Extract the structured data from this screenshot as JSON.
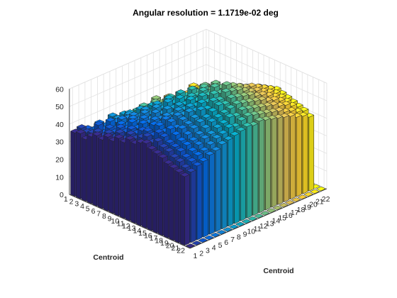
{
  "chart_data": {
    "type": "bar3",
    "title": "Angular resolution =   1.1719e-02 deg",
    "xlabel": "Centroid",
    "ylabel": "Centroid",
    "zlabel": "",
    "x_categories": [
      "1",
      "2",
      "3",
      "4",
      "5",
      "6",
      "7",
      "8",
      "9",
      "10",
      "11",
      "12",
      "13",
      "14",
      "15",
      "16",
      "17",
      "18",
      "19",
      "20",
      "21",
      "22"
    ],
    "y_categories": [
      "1",
      "2",
      "3",
      "4",
      "5",
      "6",
      "7",
      "8",
      "9",
      "10",
      "11",
      "12",
      "13",
      "14",
      "15",
      "16",
      "17",
      "18",
      "19",
      "20",
      "21",
      "22"
    ],
    "zlim": [
      0,
      60
    ],
    "z_ticks": [
      0,
      10,
      20,
      30,
      40,
      50,
      60
    ],
    "grid": true,
    "colormap": "parula",
    "values": [
      [
        36,
        37,
        35,
        33,
        34,
        32,
        36,
        33,
        31,
        30,
        33,
        34,
        32,
        35,
        31,
        33,
        30,
        32,
        29,
        33,
        30,
        0
      ],
      [
        37,
        36,
        34,
        38,
        35,
        33,
        36,
        37,
        34,
        33,
        35,
        32,
        36,
        34,
        33,
        31,
        35,
        33,
        32,
        30,
        31,
        0
      ],
      [
        35,
        37,
        40,
        36,
        38,
        37,
        35,
        39,
        36,
        38,
        34,
        36,
        33,
        37,
        35,
        34,
        32,
        34,
        33,
        31,
        32,
        0
      ],
      [
        38,
        39,
        37,
        42,
        40,
        39,
        41,
        38,
        40,
        37,
        39,
        36,
        38,
        35,
        37,
        33,
        36,
        32,
        35,
        33,
        34,
        0
      ],
      [
        40,
        38,
        41,
        39,
        43,
        42,
        40,
        44,
        41,
        43,
        39,
        41,
        38,
        40,
        36,
        38,
        34,
        37,
        35,
        36,
        33,
        0
      ],
      [
        39,
        41,
        40,
        43,
        41,
        45,
        43,
        42,
        46,
        44,
        42,
        45,
        41,
        43,
        40,
        38,
        39,
        36,
        38,
        37,
        35,
        0
      ],
      [
        42,
        40,
        44,
        42,
        46,
        44,
        48,
        45,
        47,
        46,
        49,
        44,
        47,
        45,
        43,
        41,
        42,
        40,
        39,
        38,
        37,
        0
      ],
      [
        41,
        44,
        43,
        47,
        45,
        49,
        47,
        51,
        48,
        50,
        47,
        49,
        46,
        48,
        45,
        44,
        43,
        41,
        42,
        40,
        38,
        0
      ],
      [
        44,
        42,
        46,
        45,
        49,
        47,
        52,
        50,
        54,
        51,
        53,
        50,
        52,
        49,
        48,
        46,
        45,
        43,
        44,
        41,
        40,
        0
      ],
      [
        43,
        46,
        45,
        49,
        48,
        52,
        50,
        55,
        53,
        57,
        54,
        56,
        52,
        55,
        51,
        49,
        48,
        46,
        45,
        44,
        42,
        0
      ],
      [
        46,
        45,
        48,
        47,
        51,
        50,
        54,
        53,
        57,
        55,
        59,
        56,
        58,
        54,
        53,
        51,
        50,
        48,
        47,
        46,
        44,
        0
      ],
      [
        45,
        47,
        49,
        51,
        50,
        53,
        52,
        56,
        55,
        58,
        57,
        60,
        57,
        56,
        55,
        53,
        52,
        50,
        49,
        47,
        46,
        0
      ],
      [
        47,
        49,
        48,
        52,
        54,
        52,
        56,
        55,
        59,
        57,
        61,
        58,
        62,
        58,
        57,
        55,
        54,
        52,
        50,
        49,
        47,
        0
      ],
      [
        48,
        47,
        51,
        50,
        54,
        56,
        55,
        58,
        57,
        61,
        60,
        63,
        61,
        60,
        58,
        57,
        55,
        53,
        52,
        50,
        48,
        0
      ],
      [
        46,
        49,
        50,
        53,
        52,
        55,
        58,
        57,
        60,
        59,
        62,
        61,
        64,
        62,
        60,
        58,
        57,
        55,
        53,
        51,
        49,
        0
      ],
      [
        45,
        47,
        48,
        51,
        53,
        54,
        56,
        59,
        58,
        61,
        60,
        63,
        62,
        61,
        59,
        57,
        56,
        54,
        52,
        50,
        48,
        0
      ],
      [
        44,
        46,
        47,
        49,
        51,
        53,
        55,
        56,
        58,
        60,
        59,
        61,
        60,
        59,
        58,
        56,
        55,
        53,
        51,
        49,
        47,
        0
      ],
      [
        42,
        44,
        46,
        48,
        49,
        51,
        53,
        55,
        56,
        57,
        58,
        59,
        58,
        57,
        56,
        55,
        53,
        52,
        50,
        48,
        46,
        0
      ],
      [
        41,
        43,
        44,
        46,
        48,
        50,
        51,
        53,
        54,
        56,
        55,
        57,
        56,
        55,
        54,
        53,
        52,
        50,
        49,
        47,
        45,
        0
      ],
      [
        40,
        41,
        43,
        45,
        46,
        48,
        50,
        51,
        53,
        52,
        54,
        55,
        54,
        53,
        52,
        51,
        50,
        48,
        47,
        45,
        44,
        0
      ],
      [
        39,
        40,
        42,
        43,
        45,
        46,
        48,
        49,
        50,
        51,
        52,
        51,
        52,
        51,
        50,
        49,
        48,
        47,
        45,
        44,
        42,
        0
      ],
      [
        0,
        0,
        0,
        0,
        0,
        0,
        0,
        0,
        0,
        0,
        0,
        0,
        0,
        0,
        0,
        0,
        0,
        0,
        0,
        0,
        0,
        0
      ]
    ]
  }
}
